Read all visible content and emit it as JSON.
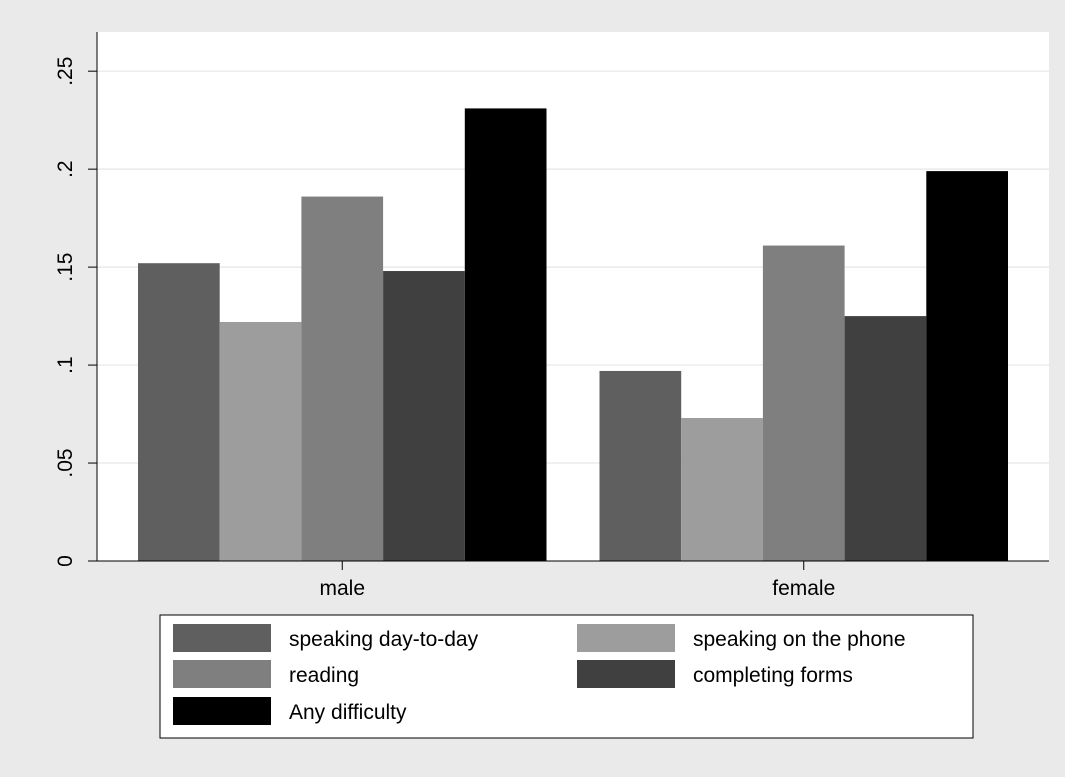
{
  "chart_data": {
    "type": "bar",
    "categories": [
      "male",
      "female"
    ],
    "series": [
      {
        "name": "speaking day-to-day",
        "color": "#5f5f5f",
        "values": [
          0.152,
          0.097
        ]
      },
      {
        "name": "speaking on the phone",
        "color": "#9d9d9d",
        "values": [
          0.122,
          0.073
        ]
      },
      {
        "name": "reading",
        "color": "#7f7f7f",
        "values": [
          0.186,
          0.161
        ]
      },
      {
        "name": "completing forms",
        "color": "#404040",
        "values": [
          0.148,
          0.125
        ]
      },
      {
        "name": "Any difficulty",
        "color": "#000000",
        "values": [
          0.231,
          0.199
        ]
      }
    ],
    "yticks": [
      0,
      0.05,
      0.1,
      0.15,
      0.2,
      0.25
    ],
    "ytick_labels": [
      "0",
      ".05",
      ".1",
      ".15",
      ".2",
      ".25"
    ],
    "ylim": [
      0,
      0.27
    ],
    "grid": true,
    "legend": "bottom",
    "legend_columns": 2,
    "background_color": "#eaeaea",
    "plot_color": "#ffffff",
    "grid_color": "#e6e6e6"
  }
}
